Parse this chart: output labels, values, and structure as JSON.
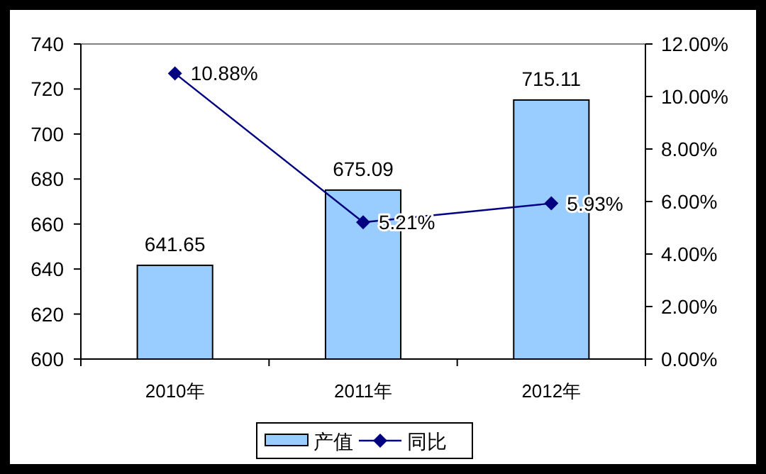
{
  "chart_data": {
    "type": "bar",
    "categories": [
      "2010年",
      "2011年",
      "2012年"
    ],
    "series": [
      {
        "name": "产值",
        "color": "#99ccff",
        "values": [
          641.65,
          675.09,
          715.11
        ],
        "value_labels": [
          "641.65",
          "675.09",
          "715.11"
        ]
      },
      {
        "name": "同比",
        "type": "line",
        "axis": "y2",
        "color": "#000080",
        "values": [
          10.88,
          5.21,
          5.93
        ],
        "value_labels": [
          "10.88%",
          "5.21%",
          "5.93%"
        ],
        "marker": "diamond"
      }
    ],
    "ylim": [
      600,
      740
    ],
    "yticks": [
      600,
      620,
      640,
      660,
      680,
      700,
      720,
      740
    ],
    "y2lim": [
      0,
      12
    ],
    "y2ticks": [
      {
        "value": 0,
        "label": "0.00%"
      },
      {
        "value": 2,
        "label": "2.00%"
      },
      {
        "value": 4,
        "label": "4.00%"
      },
      {
        "value": 6,
        "label": "6.00%"
      },
      {
        "value": 8,
        "label": "8.00%"
      },
      {
        "value": 10,
        "label": "10.00%"
      },
      {
        "value": 12,
        "label": "12.00%"
      }
    ],
    "grid": false,
    "legend": "bottom"
  }
}
